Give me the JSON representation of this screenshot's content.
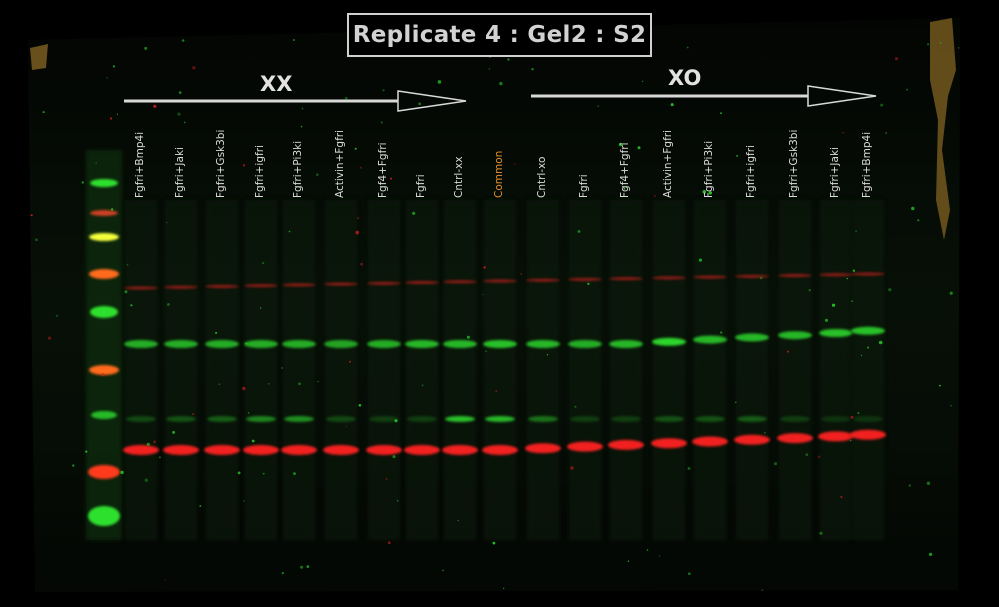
{
  "title": "Replicate 4 : Gel2 : S2",
  "groups": {
    "xx": {
      "label": "XX"
    },
    "xo": {
      "label": "XO"
    }
  },
  "lanes": [
    {
      "label": "Fgfri+Bmp4i",
      "color": "#dcdcdc"
    },
    {
      "label": "Fgfri+Jaki",
      "color": "#dcdcdc"
    },
    {
      "label": "Fgfri+Gsk3bi",
      "color": "#dcdcdc"
    },
    {
      "label": "Fgfri+igfri",
      "color": "#dcdcdc"
    },
    {
      "label": "Fgfri+Pi3ki",
      "color": "#dcdcdc"
    },
    {
      "label": "Activin+Fgfri",
      "color": "#dcdcdc"
    },
    {
      "label": "Fgf4+Fgfri",
      "color": "#dcdcdc"
    },
    {
      "label": "Fgfri",
      "color": "#dcdcdc"
    },
    {
      "label": "Cntrl-xx",
      "color": "#dcdcdc"
    },
    {
      "label": "Common",
      "color": "#e8902a"
    },
    {
      "label": "Cntrl-xo",
      "color": "#dcdcdc"
    },
    {
      "label": "Fgfri",
      "color": "#dcdcdc"
    },
    {
      "label": "Fgf4+Fgfri",
      "color": "#dcdcdc"
    },
    {
      "label": "Activin+Fgfri",
      "color": "#dcdcdc"
    },
    {
      "label": "Fgfri+Pi3ki",
      "color": "#dcdcdc"
    },
    {
      "label": "Fgfri+igfri",
      "color": "#dcdcdc"
    },
    {
      "label": "Fgfri+Gsk3bi",
      "color": "#dcdcdc"
    },
    {
      "label": "Fgfri+Jaki",
      "color": "#dcdcdc"
    },
    {
      "label": "Fgfri+Bmp4i",
      "color": "#dcdcdc"
    }
  ],
  "colors": {
    "background": "#000000",
    "membrane": "#050805",
    "green_band": "#2fe02f",
    "red_band": "#ff2020",
    "ladder_yellow": "#f4ff3a",
    "ladder_orange": "#ff6a1a",
    "smudge": "#8a6a24"
  }
}
